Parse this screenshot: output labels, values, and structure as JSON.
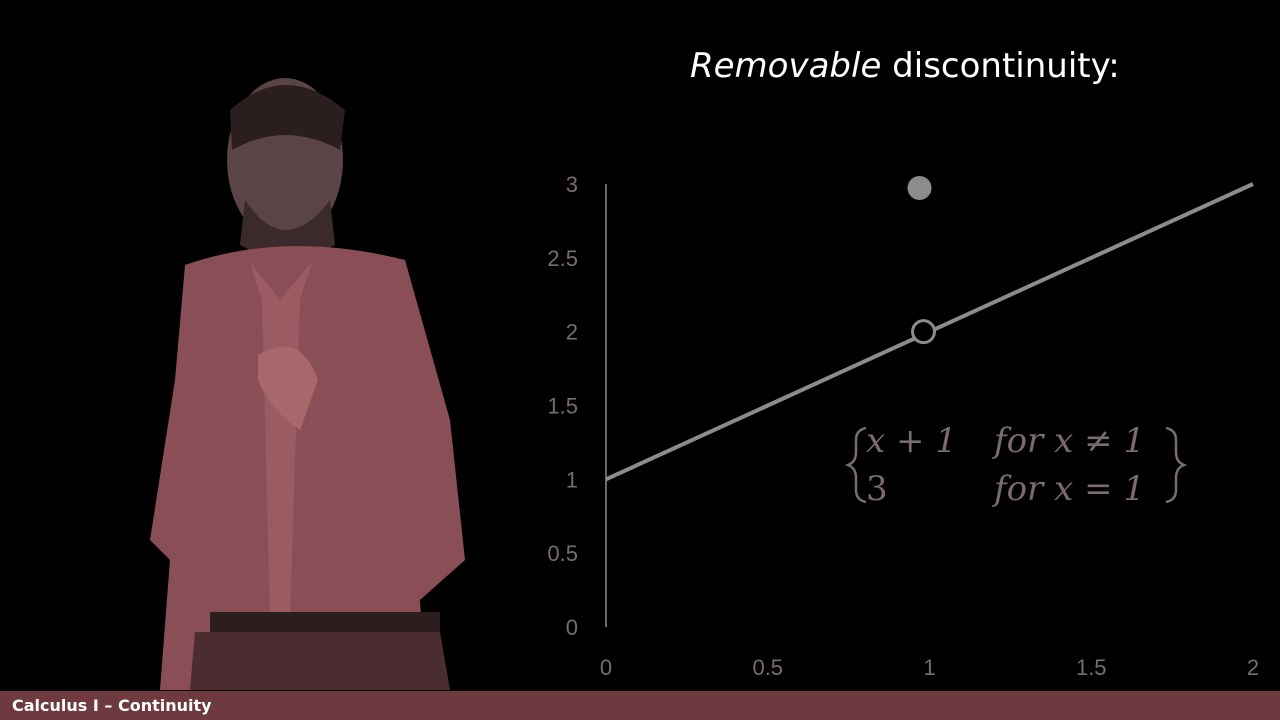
{
  "slide": {
    "title_italic": "Removable",
    "title_rest": " discontinuity:"
  },
  "footer": {
    "label": "Calculus I – Continuity"
  },
  "piecewise": {
    "row1_expr": "x + 1",
    "row1_cond": "for x ≠ 1",
    "row2_expr": "3",
    "row2_cond": "for x = 1"
  },
  "colors": {
    "graph": "#8c8c8c",
    "axis_text": "#7a6b6d",
    "footer_bg": "#6e3a40",
    "presenter_shirt": "#8a4f56"
  },
  "chart_data": {
    "type": "line",
    "x": [
      0,
      2
    ],
    "series": [
      {
        "values": [
          1,
          3
        ]
      }
    ],
    "points": [
      {
        "x": 1,
        "y": 2,
        "style": "open-circle"
      },
      {
        "x": 1,
        "y": 3,
        "style": "filled-circle"
      }
    ],
    "xticks": [
      "0",
      "0.5",
      "1",
      "1.5",
      "2"
    ],
    "yticks": [
      "0",
      "0.5",
      "1",
      "1.5",
      "2",
      "2.5",
      "3"
    ],
    "xlim": [
      0,
      2
    ],
    "ylim": [
      0,
      3
    ],
    "grid": false
  }
}
